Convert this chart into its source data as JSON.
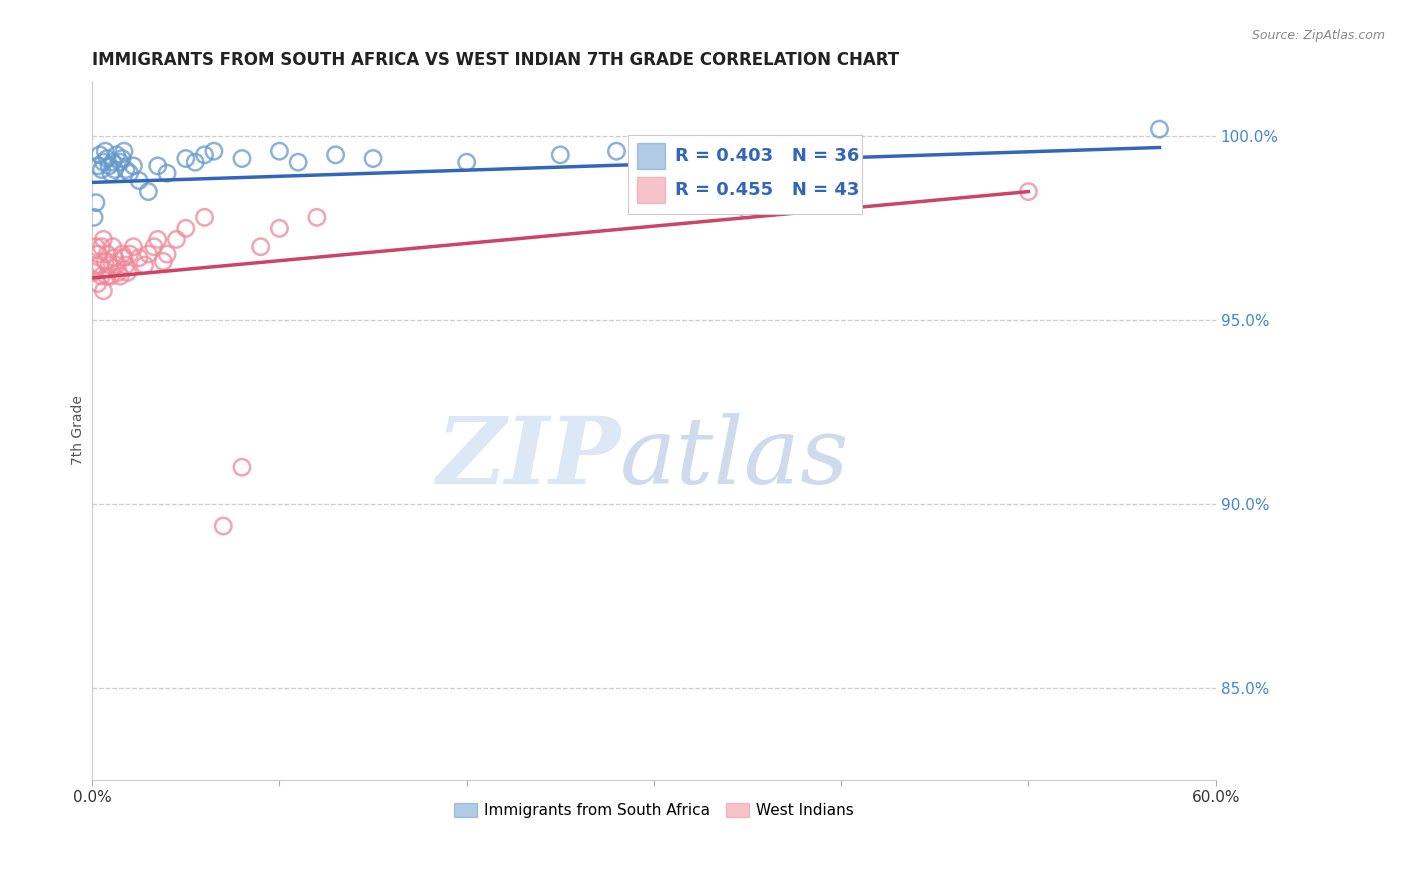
{
  "title": "IMMIGRANTS FROM SOUTH AFRICA VS WEST INDIAN 7TH GRADE CORRELATION CHART",
  "source": "Source: ZipAtlas.com",
  "ylabel": "7th Grade",
  "xlim": [
    0.0,
    0.6
  ],
  "ylim": [
    0.825,
    1.015
  ],
  "xticks": [
    0.0,
    0.1,
    0.2,
    0.3,
    0.4,
    0.5,
    0.6
  ],
  "xticklabels": [
    "0.0%",
    "",
    "",
    "",
    "",
    "",
    "60.0%"
  ],
  "yticks_right": [
    0.85,
    0.9,
    0.95,
    1.0
  ],
  "ytick_right_labels": [
    "85.0%",
    "90.0%",
    "95.0%",
    "100.0%"
  ],
  "grid_color": "#cccccc",
  "background_color": "#ffffff",
  "blue_color": "#6699cc",
  "pink_color": "#ee8899",
  "blue_R": 0.403,
  "blue_N": 36,
  "pink_R": 0.455,
  "pink_N": 43,
  "legend_label_blue": "Immigrants from South Africa",
  "legend_label_pink": "West Indians",
  "blue_scatter_x": [
    0.001,
    0.002,
    0.003,
    0.004,
    0.005,
    0.006,
    0.007,
    0.008,
    0.009,
    0.01,
    0.011,
    0.012,
    0.013,
    0.015,
    0.016,
    0.017,
    0.018,
    0.02,
    0.022,
    0.025,
    0.03,
    0.035,
    0.04,
    0.05,
    0.055,
    0.06,
    0.065,
    0.08,
    0.1,
    0.11,
    0.13,
    0.15,
    0.2,
    0.25,
    0.28,
    0.57
  ],
  "blue_scatter_y": [
    0.978,
    0.982,
    0.992,
    0.995,
    0.991,
    0.993,
    0.996,
    0.994,
    0.992,
    0.99,
    0.993,
    0.991,
    0.995,
    0.993,
    0.994,
    0.996,
    0.991,
    0.99,
    0.992,
    0.988,
    0.985,
    0.992,
    0.99,
    0.994,
    0.993,
    0.995,
    0.996,
    0.994,
    0.996,
    0.993,
    0.995,
    0.994,
    0.993,
    0.995,
    0.996,
    1.002
  ],
  "pink_scatter_x": [
    0.001,
    0.002,
    0.002,
    0.003,
    0.003,
    0.004,
    0.005,
    0.005,
    0.006,
    0.006,
    0.007,
    0.008,
    0.008,
    0.009,
    0.01,
    0.011,
    0.012,
    0.013,
    0.014,
    0.015,
    0.016,
    0.017,
    0.018,
    0.019,
    0.02,
    0.022,
    0.025,
    0.028,
    0.03,
    0.033,
    0.035,
    0.038,
    0.04,
    0.045,
    0.05,
    0.06,
    0.07,
    0.08,
    0.09,
    0.1,
    0.12,
    0.35,
    0.5
  ],
  "pink_scatter_y": [
    0.963,
    0.97,
    0.965,
    0.968,
    0.96,
    0.965,
    0.97,
    0.962,
    0.972,
    0.958,
    0.966,
    0.968,
    0.962,
    0.965,
    0.962,
    0.97,
    0.967,
    0.965,
    0.963,
    0.962,
    0.968,
    0.967,
    0.965,
    0.963,
    0.968,
    0.97,
    0.967,
    0.965,
    0.968,
    0.97,
    0.972,
    0.966,
    0.968,
    0.972,
    0.975,
    0.978,
    0.894,
    0.91,
    0.97,
    0.975,
    0.978,
    0.98,
    0.985
  ]
}
